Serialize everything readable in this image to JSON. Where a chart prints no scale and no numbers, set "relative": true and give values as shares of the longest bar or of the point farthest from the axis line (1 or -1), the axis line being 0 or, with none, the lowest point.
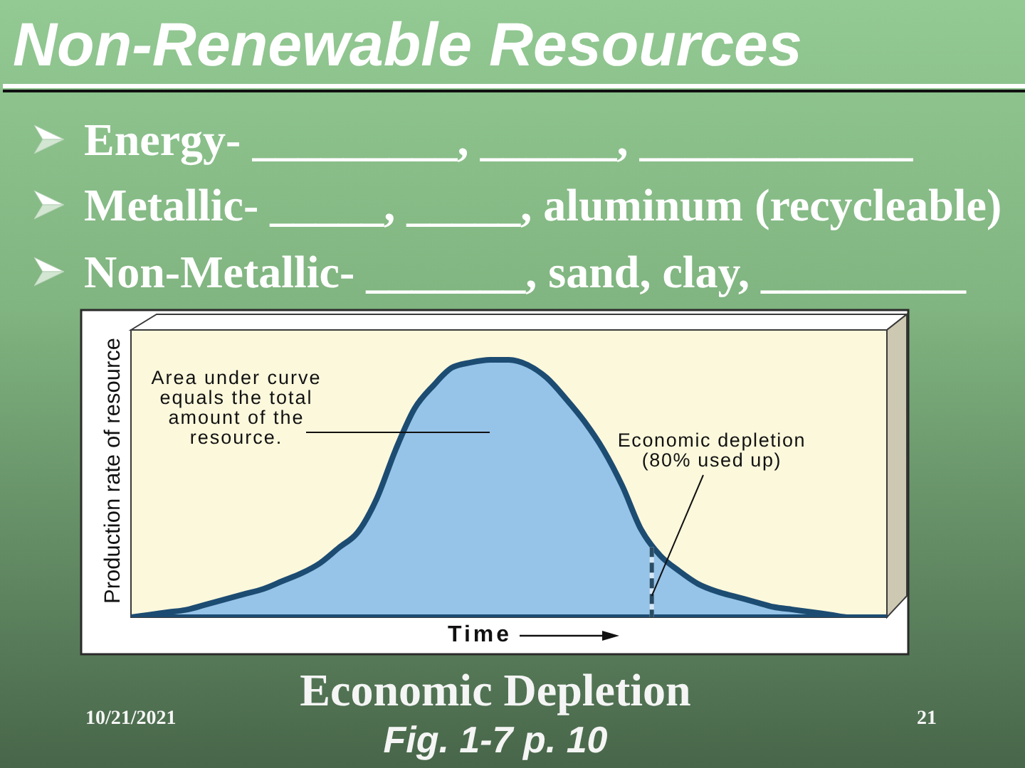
{
  "chart_data": {
    "type": "area",
    "title": "Non-Renewable Resources",
    "subtitle": "Economic Depletion",
    "xlabel": "Time",
    "ylabel": "Production rate of resource",
    "relative": true,
    "categories": [
      null,
      null,
      null,
      null,
      null,
      null,
      null,
      null,
      null,
      null,
      null,
      null,
      null,
      null,
      null,
      null,
      null,
      null,
      null,
      null,
      null,
      null,
      null,
      null,
      null,
      null,
      null,
      null,
      null,
      null,
      null,
      null,
      null,
      null,
      null,
      null,
      null,
      null,
      null,
      null,
      null
    ],
    "values": [
      0,
      0.01,
      0.02,
      0.03,
      0.05,
      0.07,
      0.09,
      0.11,
      0.14,
      0.17,
      0.21,
      0.27,
      0.33,
      0.46,
      0.65,
      0.81,
      0.9,
      0.97,
      0.99,
      1,
      1,
      0.98,
      0.93,
      0.85,
      0.76,
      0.65,
      0.51,
      0.34,
      0.24,
      0.18,
      0.13,
      0.1,
      0.08,
      0.06,
      0.04,
      0.03,
      0.02,
      0.01,
      0,
      0,
      0
    ],
    "color": "#96c3e8",
    "annotations": [
      "Area under curve\nequals the total\namount of the\nresource.",
      "Economic depletion\n(80% used up)",
      "Energy- _________, ______, ____________",
      "Metallic- _____, _____, aluminum (recycleable)",
      "Non-Metallic- _______, sand, clay, _________",
      "Fig. 1-7 p. 10",
      "10/21/2021",
      "21"
    ]
  }
}
